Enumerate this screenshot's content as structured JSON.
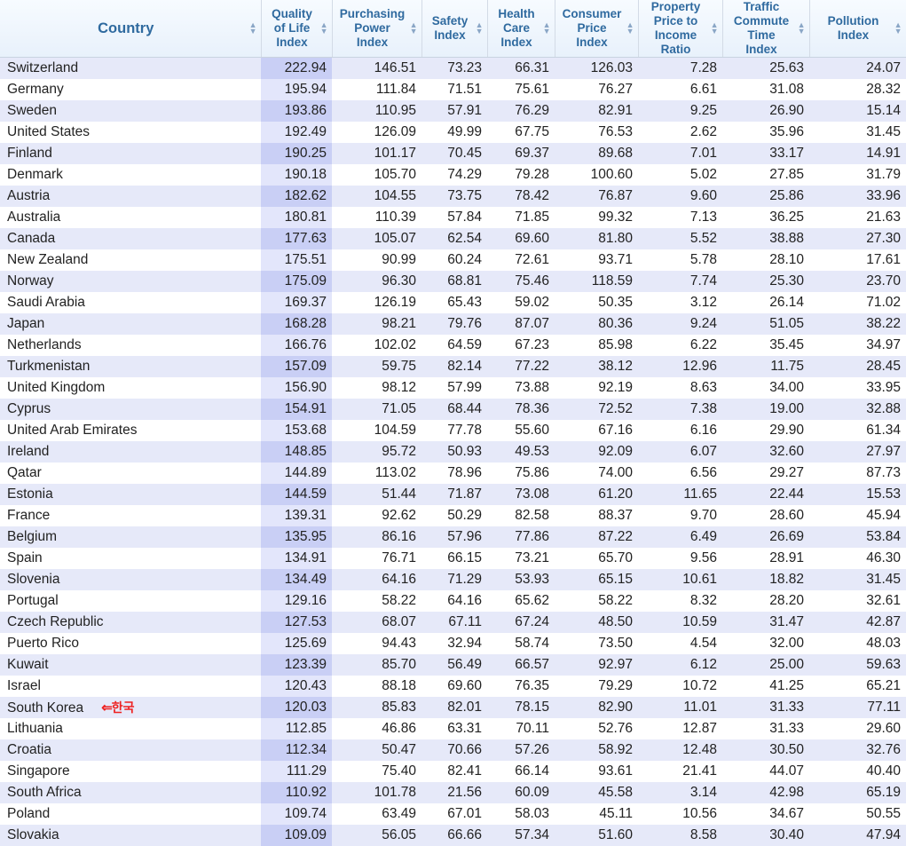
{
  "columns": [
    {
      "label": "Country",
      "name": "country"
    },
    {
      "label": "Quality\nof Life\nIndex",
      "name": "quality-of-life-index"
    },
    {
      "label": "Purchasing\nPower\nIndex",
      "name": "purchasing-power-index"
    },
    {
      "label": "Safety\nIndex",
      "name": "safety-index"
    },
    {
      "label": "Health\nCare\nIndex",
      "name": "health-care-index"
    },
    {
      "label": "Consumer\nPrice\nIndex",
      "name": "consumer-price-index"
    },
    {
      "label": "Property\nPrice to\nIncome\nRatio",
      "name": "property-price-to-income-ratio"
    },
    {
      "label": "Traffic\nCommute\nTime\nIndex",
      "name": "traffic-commute-time-index"
    },
    {
      "label": "Pollution\nIndex",
      "name": "pollution-index"
    }
  ],
  "sorted_column": 1,
  "annotation": {
    "row": 30,
    "arrow": "⇐",
    "text": "한국",
    "color": "#ee2222"
  },
  "rows": [
    [
      "Switzerland",
      "222.94",
      "146.51",
      "73.23",
      "66.31",
      "126.03",
      "7.28",
      "25.63",
      "24.07"
    ],
    [
      "Germany",
      "195.94",
      "111.84",
      "71.51",
      "75.61",
      "76.27",
      "6.61",
      "31.08",
      "28.32"
    ],
    [
      "Sweden",
      "193.86",
      "110.95",
      "57.91",
      "76.29",
      "82.91",
      "9.25",
      "26.90",
      "15.14"
    ],
    [
      "United States",
      "192.49",
      "126.09",
      "49.99",
      "67.75",
      "76.53",
      "2.62",
      "35.96",
      "31.45"
    ],
    [
      "Finland",
      "190.25",
      "101.17",
      "70.45",
      "69.37",
      "89.68",
      "7.01",
      "33.17",
      "14.91"
    ],
    [
      "Denmark",
      "190.18",
      "105.70",
      "74.29",
      "79.28",
      "100.60",
      "5.02",
      "27.85",
      "31.79"
    ],
    [
      "Austria",
      "182.62",
      "104.55",
      "73.75",
      "78.42",
      "76.87",
      "9.60",
      "25.86",
      "33.96"
    ],
    [
      "Australia",
      "180.81",
      "110.39",
      "57.84",
      "71.85",
      "99.32",
      "7.13",
      "36.25",
      "21.63"
    ],
    [
      "Canada",
      "177.63",
      "105.07",
      "62.54",
      "69.60",
      "81.80",
      "5.52",
      "38.88",
      "27.30"
    ],
    [
      "New Zealand",
      "175.51",
      "90.99",
      "60.24",
      "72.61",
      "93.71",
      "5.78",
      "28.10",
      "17.61"
    ],
    [
      "Norway",
      "175.09",
      "96.30",
      "68.81",
      "75.46",
      "118.59",
      "7.74",
      "25.30",
      "23.70"
    ],
    [
      "Saudi Arabia",
      "169.37",
      "126.19",
      "65.43",
      "59.02",
      "50.35",
      "3.12",
      "26.14",
      "71.02"
    ],
    [
      "Japan",
      "168.28",
      "98.21",
      "79.76",
      "87.07",
      "80.36",
      "9.24",
      "51.05",
      "38.22"
    ],
    [
      "Netherlands",
      "166.76",
      "102.02",
      "64.59",
      "67.23",
      "85.98",
      "6.22",
      "35.45",
      "34.97"
    ],
    [
      "Turkmenistan",
      "157.09",
      "59.75",
      "82.14",
      "77.22",
      "38.12",
      "12.96",
      "11.75",
      "28.45"
    ],
    [
      "United Kingdom",
      "156.90",
      "98.12",
      "57.99",
      "73.88",
      "92.19",
      "8.63",
      "34.00",
      "33.95"
    ],
    [
      "Cyprus",
      "154.91",
      "71.05",
      "68.44",
      "78.36",
      "72.52",
      "7.38",
      "19.00",
      "32.88"
    ],
    [
      "United Arab Emirates",
      "153.68",
      "104.59",
      "77.78",
      "55.60",
      "67.16",
      "6.16",
      "29.90",
      "61.34"
    ],
    [
      "Ireland",
      "148.85",
      "95.72",
      "50.93",
      "49.53",
      "92.09",
      "6.07",
      "32.60",
      "27.97"
    ],
    [
      "Qatar",
      "144.89",
      "113.02",
      "78.96",
      "75.86",
      "74.00",
      "6.56",
      "29.27",
      "87.73"
    ],
    [
      "Estonia",
      "144.59",
      "51.44",
      "71.87",
      "73.08",
      "61.20",
      "11.65",
      "22.44",
      "15.53"
    ],
    [
      "France",
      "139.31",
      "92.62",
      "50.29",
      "82.58",
      "88.37",
      "9.70",
      "28.60",
      "45.94"
    ],
    [
      "Belgium",
      "135.95",
      "86.16",
      "57.96",
      "77.86",
      "87.22",
      "6.49",
      "26.69",
      "53.84"
    ],
    [
      "Spain",
      "134.91",
      "76.71",
      "66.15",
      "73.21",
      "65.70",
      "9.56",
      "28.91",
      "46.30"
    ],
    [
      "Slovenia",
      "134.49",
      "64.16",
      "71.29",
      "53.93",
      "65.15",
      "10.61",
      "18.82",
      "31.45"
    ],
    [
      "Portugal",
      "129.16",
      "58.22",
      "64.16",
      "65.62",
      "58.22",
      "8.32",
      "28.20",
      "32.61"
    ],
    [
      "Czech Republic",
      "127.53",
      "68.07",
      "67.11",
      "67.24",
      "48.50",
      "10.59",
      "31.47",
      "42.87"
    ],
    [
      "Puerto Rico",
      "125.69",
      "94.43",
      "32.94",
      "58.74",
      "73.50",
      "4.54",
      "32.00",
      "48.03"
    ],
    [
      "Kuwait",
      "123.39",
      "85.70",
      "56.49",
      "66.57",
      "92.97",
      "6.12",
      "25.00",
      "59.63"
    ],
    [
      "Israel",
      "120.43",
      "88.18",
      "69.60",
      "76.35",
      "79.29",
      "10.72",
      "41.25",
      "65.21"
    ],
    [
      "South Korea",
      "120.03",
      "85.83",
      "82.01",
      "78.15",
      "82.90",
      "11.01",
      "31.33",
      "77.11"
    ],
    [
      "Lithuania",
      "112.85",
      "46.86",
      "63.31",
      "70.11",
      "52.76",
      "12.87",
      "31.33",
      "29.60"
    ],
    [
      "Croatia",
      "112.34",
      "50.47",
      "70.66",
      "57.26",
      "58.92",
      "12.48",
      "30.50",
      "32.76"
    ],
    [
      "Singapore",
      "111.29",
      "75.40",
      "82.41",
      "66.14",
      "93.61",
      "21.41",
      "44.07",
      "40.40"
    ],
    [
      "South Africa",
      "110.92",
      "101.78",
      "21.56",
      "60.09",
      "45.58",
      "3.14",
      "42.98",
      "65.19"
    ],
    [
      "Poland",
      "109.74",
      "63.49",
      "67.01",
      "58.03",
      "45.11",
      "10.56",
      "34.67",
      "50.55"
    ],
    [
      "Slovakia",
      "109.09",
      "56.05",
      "66.66",
      "57.34",
      "51.60",
      "8.58",
      "30.40",
      "47.94"
    ]
  ]
}
